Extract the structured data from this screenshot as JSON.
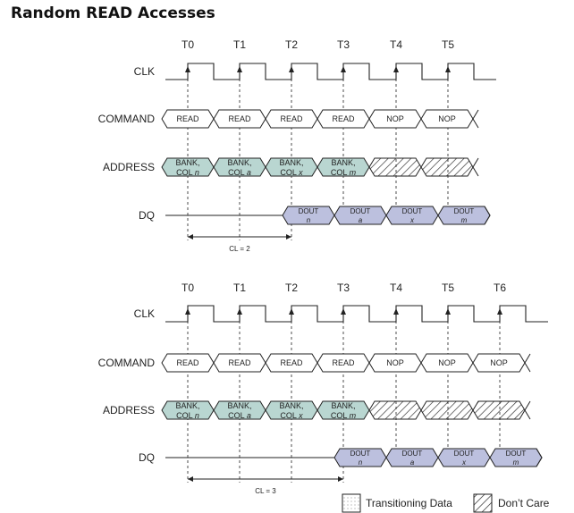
{
  "title": "Random READ Accesses",
  "colors": {
    "address_fill": "#b9d6d1",
    "dq_fill": "#bcc0de",
    "line": "#222222"
  },
  "signals": [
    "CLK",
    "COMMAND",
    "ADDRESS",
    "DQ"
  ],
  "diagrams": [
    {
      "clock_labels": [
        "T0",
        "T1",
        "T2",
        "T3",
        "T4",
        "T5"
      ],
      "commands": [
        "READ",
        "READ",
        "READ",
        "READ",
        "NOP",
        "NOP"
      ],
      "addresses": [
        {
          "top": "BANK,",
          "bottom": "COL",
          "var": "n"
        },
        {
          "top": "BANK,",
          "bottom": "COL",
          "var": "a"
        },
        {
          "top": "BANK,",
          "bottom": "COL",
          "var": "x"
        },
        {
          "top": "BANK,",
          "bottom": "COL",
          "var": "m"
        },
        {
          "dont_care": true
        },
        {
          "dont_care": true
        }
      ],
      "dq": [
        {
          "top": "DOUT",
          "var": "n"
        },
        {
          "top": "DOUT",
          "var": "a"
        },
        {
          "top": "DOUT",
          "var": "x"
        },
        {
          "top": "DOUT",
          "var": "m"
        }
      ],
      "cas_latency": 2,
      "cl_label": "CL = 2"
    },
    {
      "clock_labels": [
        "T0",
        "T1",
        "T2",
        "T3",
        "T4",
        "T5",
        "T6"
      ],
      "commands": [
        "READ",
        "READ",
        "READ",
        "READ",
        "NOP",
        "NOP",
        "NOP"
      ],
      "addresses": [
        {
          "top": "BANK,",
          "bottom": "COL",
          "var": "n"
        },
        {
          "top": "BANK,",
          "bottom": "COL",
          "var": "a"
        },
        {
          "top": "BANK,",
          "bottom": "COL",
          "var": "x"
        },
        {
          "top": "BANK,",
          "bottom": "COL",
          "var": "m"
        },
        {
          "dont_care": true
        },
        {
          "dont_care": true
        },
        {
          "dont_care": true
        }
      ],
      "dq": [
        {
          "top": "DOUT",
          "var": "n"
        },
        {
          "top": "DOUT",
          "var": "a"
        },
        {
          "top": "DOUT",
          "var": "x"
        },
        {
          "top": "DOUT",
          "var": "m"
        }
      ],
      "cas_latency": 3,
      "cl_label": "CL = 3"
    }
  ],
  "legend": {
    "transitioning": "Transitioning Data",
    "dont_care": "Don’t Care"
  }
}
